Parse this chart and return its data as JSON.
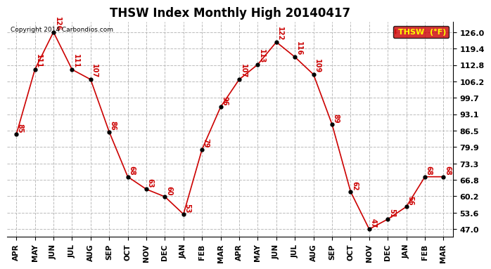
{
  "title": "THSW Index Monthly High 20140417",
  "x_labels": [
    "APR",
    "MAY",
    "JUN",
    "JUL",
    "AUG",
    "SEP",
    "OCT",
    "NOV",
    "DEC",
    "JAN",
    "FEB",
    "MAR",
    "APR",
    "MAY",
    "JUN",
    "JUL",
    "AUG",
    "SEP",
    "OCT",
    "NOV",
    "DEC",
    "JAN",
    "FEB",
    "MAR"
  ],
  "y_values": [
    85,
    111,
    126,
    111,
    107,
    86,
    68,
    63,
    60,
    53,
    79,
    96,
    107,
    113,
    122,
    116,
    109,
    89,
    62,
    47,
    51,
    56,
    68,
    68
  ],
  "yticks": [
    47.0,
    53.6,
    60.2,
    66.8,
    73.3,
    79.9,
    86.5,
    93.1,
    99.7,
    106.2,
    112.8,
    119.4,
    126.0
  ],
  "ylim": [
    44.0,
    130.0
  ],
  "line_color": "#cc0000",
  "marker_color": "#000000",
  "bg_color": "#ffffff",
  "grid_color": "#bbbbbb",
  "title_fontsize": 12,
  "label_color": "#cc0000",
  "copyright_text": "Copyright 2014 Carbondios.com",
  "legend_label": "THSW  (°F)",
  "legend_bg": "#cc0000",
  "legend_text_color": "#ffff00"
}
